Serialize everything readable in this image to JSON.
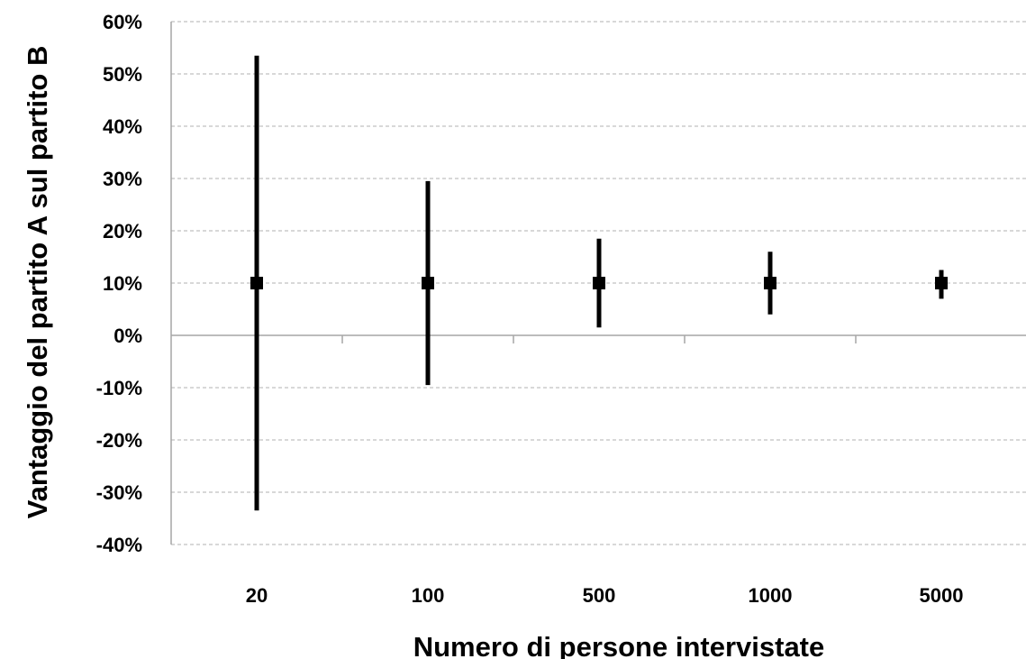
{
  "chart_data": {
    "type": "errorbar",
    "title": "",
    "xlabel": "Numero di persone intervistate",
    "ylabel": "Vantaggio del partito A sul partito B",
    "categories": [
      "20",
      "100",
      "500",
      "1000",
      "5000"
    ],
    "series": [
      {
        "values": [
          10,
          10,
          10,
          10,
          10
        ],
        "lower": [
          -33.5,
          -9.5,
          1.5,
          4,
          7
        ],
        "upper": [
          53.5,
          29.5,
          18.5,
          16,
          12.5
        ]
      }
    ],
    "ylim": [
      -40,
      60
    ],
    "ytick_values": [
      60,
      50,
      40,
      30,
      20,
      10,
      0,
      -10,
      -20,
      -30,
      -40
    ],
    "ytick_labels": [
      "60%",
      "50%",
      "40%",
      "30%",
      "20%",
      "10%",
      "0%",
      "-10%",
      "-20%",
      "-30%",
      "-40%"
    ],
    "grid": true,
    "legend": "none",
    "colors": {
      "marker": "#000000",
      "grid": "#b0b0b0",
      "axis": "#a6a6a6"
    }
  }
}
